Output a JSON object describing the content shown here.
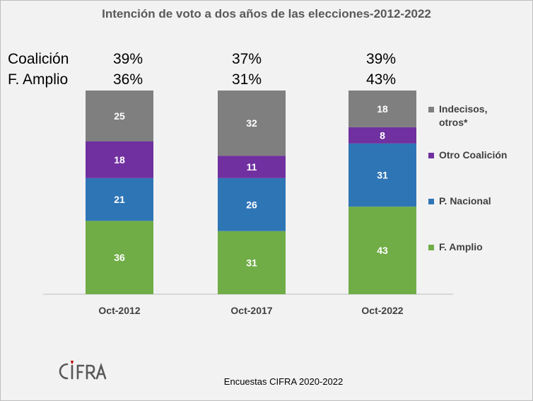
{
  "title": "Intención de voto a dos años de las elecciones-2012-2022",
  "summary": [
    {
      "label": "Coalición",
      "values": [
        "39%",
        "37%",
        "39%"
      ]
    },
    {
      "label": "F. Amplio",
      "values": [
        "36%",
        "31%",
        "43%"
      ]
    }
  ],
  "chart_data": {
    "type": "bar",
    "stacked": true,
    "categories": [
      "Oct-2012",
      "Oct-2017",
      "Oct-2022"
    ],
    "series": [
      {
        "name": "F. Amplio",
        "values": [
          36,
          31,
          43
        ],
        "color": "#70ad47"
      },
      {
        "name": "P. Nacional",
        "values": [
          21,
          26,
          31
        ],
        "color": "#2e75b6"
      },
      {
        "name": "Otro Coalición",
        "values": [
          18,
          11,
          8
        ],
        "color": "#7030a0"
      },
      {
        "name": "Indecisos, otros*",
        "values": [
          25,
          32,
          18
        ],
        "color": "#7f7f7f"
      }
    ],
    "ylim": [
      0,
      100
    ],
    "legend": "right"
  },
  "source": "Encuestas CIFRA 2020-2022",
  "logo": {
    "text": "CIFRA",
    "accent": "#c00000"
  }
}
